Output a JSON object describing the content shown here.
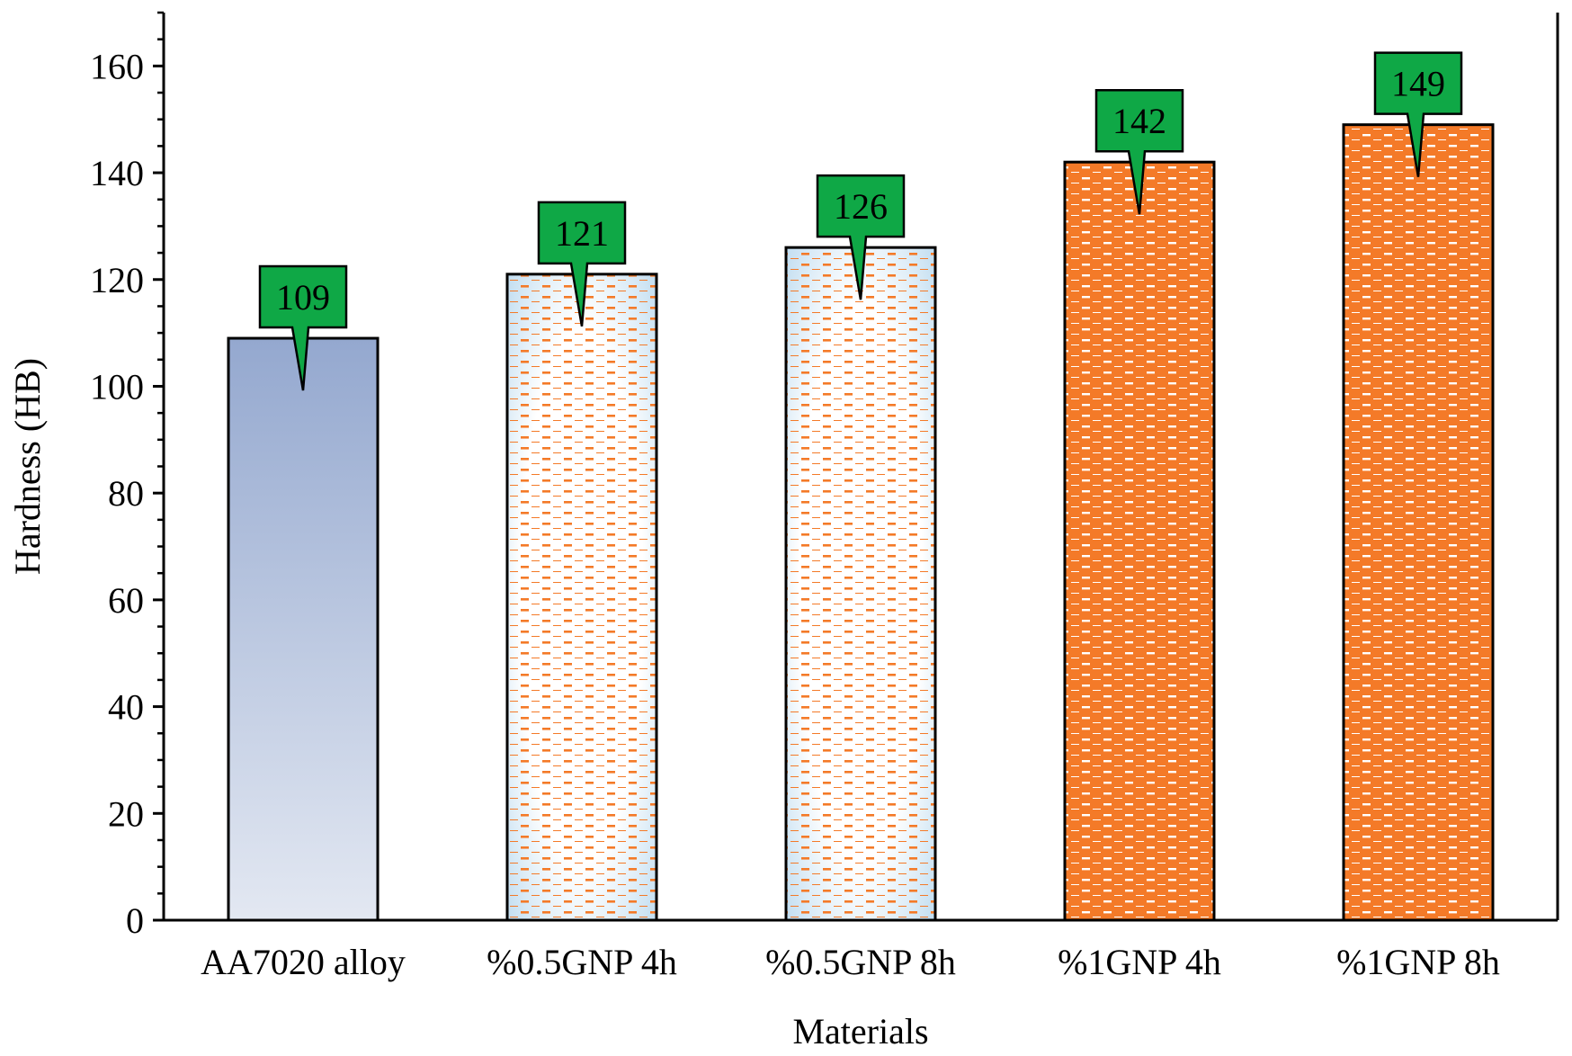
{
  "chart_data": {
    "type": "bar",
    "title": "",
    "xlabel": "Materials",
    "ylabel": "Hardness (HB)",
    "ylim": [
      0,
      170
    ],
    "ytick_step": 20,
    "yminor_step": 5,
    "yticks": [
      "0",
      "20",
      "40",
      "60",
      "80",
      "100",
      "120",
      "140",
      "160"
    ],
    "categories": [
      "AA7020 alloy",
      "%0.5GNP 4h",
      "%0.5GNP 8h",
      "%1GNP 4h",
      "%1GNP 8h"
    ],
    "values": [
      109,
      121,
      126,
      142,
      149
    ],
    "data_labels": [
      "109",
      "121",
      "126",
      "142",
      "149"
    ],
    "bar_styles": [
      "gradient-blue",
      "dash-on-light",
      "dash-on-light",
      "dash-on-orange",
      "dash-on-orange"
    ],
    "grid": false,
    "legend": "none"
  },
  "colors": {
    "bar_blue_top": "#94a8cf",
    "bar_blue_bottom": "#dfe5f1",
    "bar_light_edge": "#b8d8ee",
    "bar_light_fill": "#ffffff",
    "orange": "#f47a28",
    "callout_green": "#0fa846",
    "axis": "#000000"
  }
}
